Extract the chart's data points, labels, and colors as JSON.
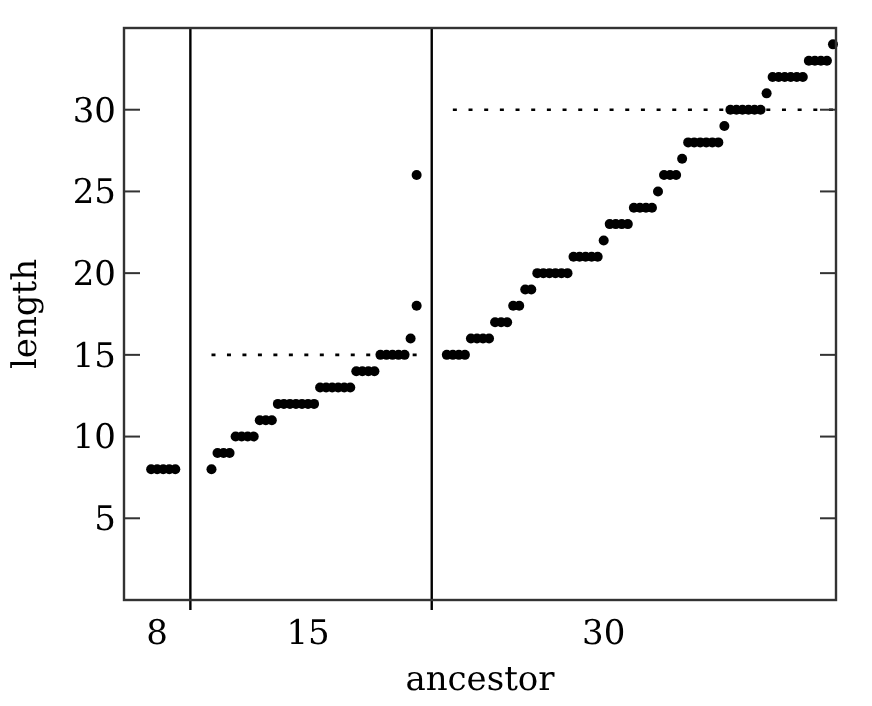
{
  "chart_data": {
    "type": "scatter",
    "xlabel": "ancestor",
    "ylabel": "length",
    "ylim": [
      0,
      35
    ],
    "yticks": [
      5,
      10,
      15,
      20,
      25,
      30
    ],
    "grid": false,
    "marker": "circle",
    "categories": [
      null,
      null,
      null,
      null,
      null,
      "8",
      null,
      null,
      null,
      null,
      null,
      null,
      null,
      null,
      null,
      null,
      null,
      null,
      null,
      null,
      null,
      null,
      null,
      null,
      null,
      null,
      null,
      null,
      null,
      null,
      "15",
      null,
      null,
      null,
      null,
      null,
      null,
      null,
      null,
      null,
      null,
      null,
      null,
      null,
      null,
      null,
      null,
      null,
      null,
      null,
      null,
      null,
      null,
      null,
      null,
      null,
      null,
      null,
      null,
      null,
      null,
      null,
      null,
      null,
      null,
      null,
      null,
      null,
      null,
      null,
      null,
      null,
      null,
      null,
      null,
      null,
      null,
      null,
      null,
      "30",
      null,
      null,
      null,
      null,
      null,
      null,
      null,
      null,
      null,
      null,
      null,
      null,
      null,
      null,
      null,
      null,
      null,
      null,
      null,
      null,
      null,
      null,
      null,
      null,
      null,
      null,
      null,
      null,
      null,
      null,
      null,
      null,
      null,
      null,
      null,
      null,
      null,
      null
    ],
    "series": [
      {
        "color": "#000000",
        "values": [
          null,
          null,
          null,
          null,
          8,
          8,
          8,
          8,
          8,
          null,
          null,
          null,
          null,
          null,
          8,
          9,
          9,
          9,
          10,
          10,
          10,
          10,
          11,
          11,
          11,
          12,
          12,
          12,
          12,
          12,
          12,
          12,
          13,
          13,
          13,
          13,
          13,
          13,
          14,
          14,
          14,
          14,
          15,
          15,
          15,
          15,
          15,
          16,
          18,
          null,
          null,
          null,
          null,
          15,
          15,
          15,
          15,
          16,
          16,
          16,
          16,
          17,
          17,
          17,
          18,
          18,
          19,
          19,
          20,
          20,
          20,
          20,
          20,
          20,
          21,
          21,
          21,
          21,
          21,
          22,
          23,
          23,
          23,
          23,
          24,
          24,
          24,
          24,
          25,
          26,
          26,
          26,
          27,
          28,
          28,
          28,
          28,
          28,
          28,
          29,
          30,
          30,
          30,
          30,
          30,
          30,
          31,
          32,
          32,
          32,
          32,
          32,
          32,
          33,
          33,
          33,
          33,
          34
        ]
      },
      {
        "color": "#000000",
        "values": [
          null,
          null,
          null,
          null,
          null,
          null,
          null,
          null,
          null,
          null,
          null,
          null,
          null,
          null,
          null,
          null,
          null,
          null,
          null,
          null,
          null,
          null,
          null,
          null,
          null,
          null,
          null,
          null,
          null,
          null,
          null,
          null,
          null,
          null,
          null,
          null,
          null,
          null,
          null,
          null,
          null,
          null,
          null,
          null,
          null,
          null,
          null,
          null,
          26,
          null,
          null,
          null,
          null,
          null,
          null,
          null,
          null,
          null,
          null,
          null,
          null,
          null,
          null,
          null,
          null,
          null,
          null,
          null,
          null,
          null,
          null,
          null,
          null,
          null,
          null,
          null,
          null,
          null,
          null,
          null,
          null,
          null,
          null,
          null,
          null,
          null,
          null,
          null,
          null,
          null,
          null,
          null,
          null,
          null,
          null,
          null,
          null,
          null,
          null,
          null,
          null,
          null,
          null,
          null,
          null,
          null,
          null,
          null,
          null,
          null,
          null,
          null,
          null,
          null,
          null,
          null,
          null,
          null
        ]
      },
      {
        "type": "line",
        "color": "#000000",
        "line_style": "dotted",
        "marker": "none",
        "values": [
          null,
          null,
          null,
          null,
          null,
          null,
          null,
          null,
          null,
          null,
          null,
          null,
          null,
          null,
          15,
          15,
          15,
          15,
          15,
          15,
          15,
          15,
          15,
          15,
          15,
          15,
          15,
          15,
          15,
          15,
          15,
          15,
          15,
          15,
          15,
          15,
          15,
          15,
          15,
          15,
          15,
          15,
          15,
          15,
          15,
          15,
          15,
          15,
          15,
          null,
          null,
          null,
          null,
          null,
          null,
          null,
          null,
          null,
          null,
          null,
          null,
          null,
          null,
          null,
          null,
          null,
          null,
          null,
          null,
          null,
          null,
          null,
          null,
          null,
          null,
          null,
          null,
          null,
          null,
          null,
          null,
          null,
          null,
          null,
          null,
          null,
          null,
          null,
          null,
          null,
          null,
          null,
          null,
          null,
          null,
          null,
          null,
          null,
          null,
          null,
          null,
          null,
          null,
          null,
          null,
          null,
          null,
          null,
          null,
          null,
          null,
          null,
          null,
          null,
          null,
          null,
          null,
          null
        ]
      },
      {
        "type": "line",
        "color": "#000000",
        "line_style": "dotted",
        "marker": "none",
        "values": [
          null,
          null,
          null,
          null,
          null,
          null,
          null,
          null,
          null,
          null,
          null,
          null,
          null,
          null,
          null,
          null,
          null,
          null,
          null,
          null,
          null,
          null,
          null,
          null,
          null,
          null,
          null,
          null,
          null,
          null,
          null,
          null,
          null,
          null,
          null,
          null,
          null,
          null,
          null,
          null,
          null,
          null,
          null,
          null,
          null,
          null,
          null,
          null,
          null,
          null,
          null,
          null,
          null,
          null,
          30,
          30,
          30,
          30,
          30,
          30,
          30,
          30,
          30,
          30,
          30,
          30,
          30,
          30,
          30,
          30,
          30,
          30,
          30,
          30,
          30,
          30,
          30,
          30,
          30,
          30,
          30,
          30,
          30,
          30,
          30,
          30,
          30,
          30,
          30,
          30,
          30,
          30,
          30,
          30,
          30,
          30,
          30,
          30,
          30,
          30,
          30,
          30,
          30,
          30,
          30,
          30,
          30,
          30,
          30,
          30,
          30,
          30,
          30,
          30,
          30,
          30,
          30,
          30
        ]
      }
    ]
  }
}
